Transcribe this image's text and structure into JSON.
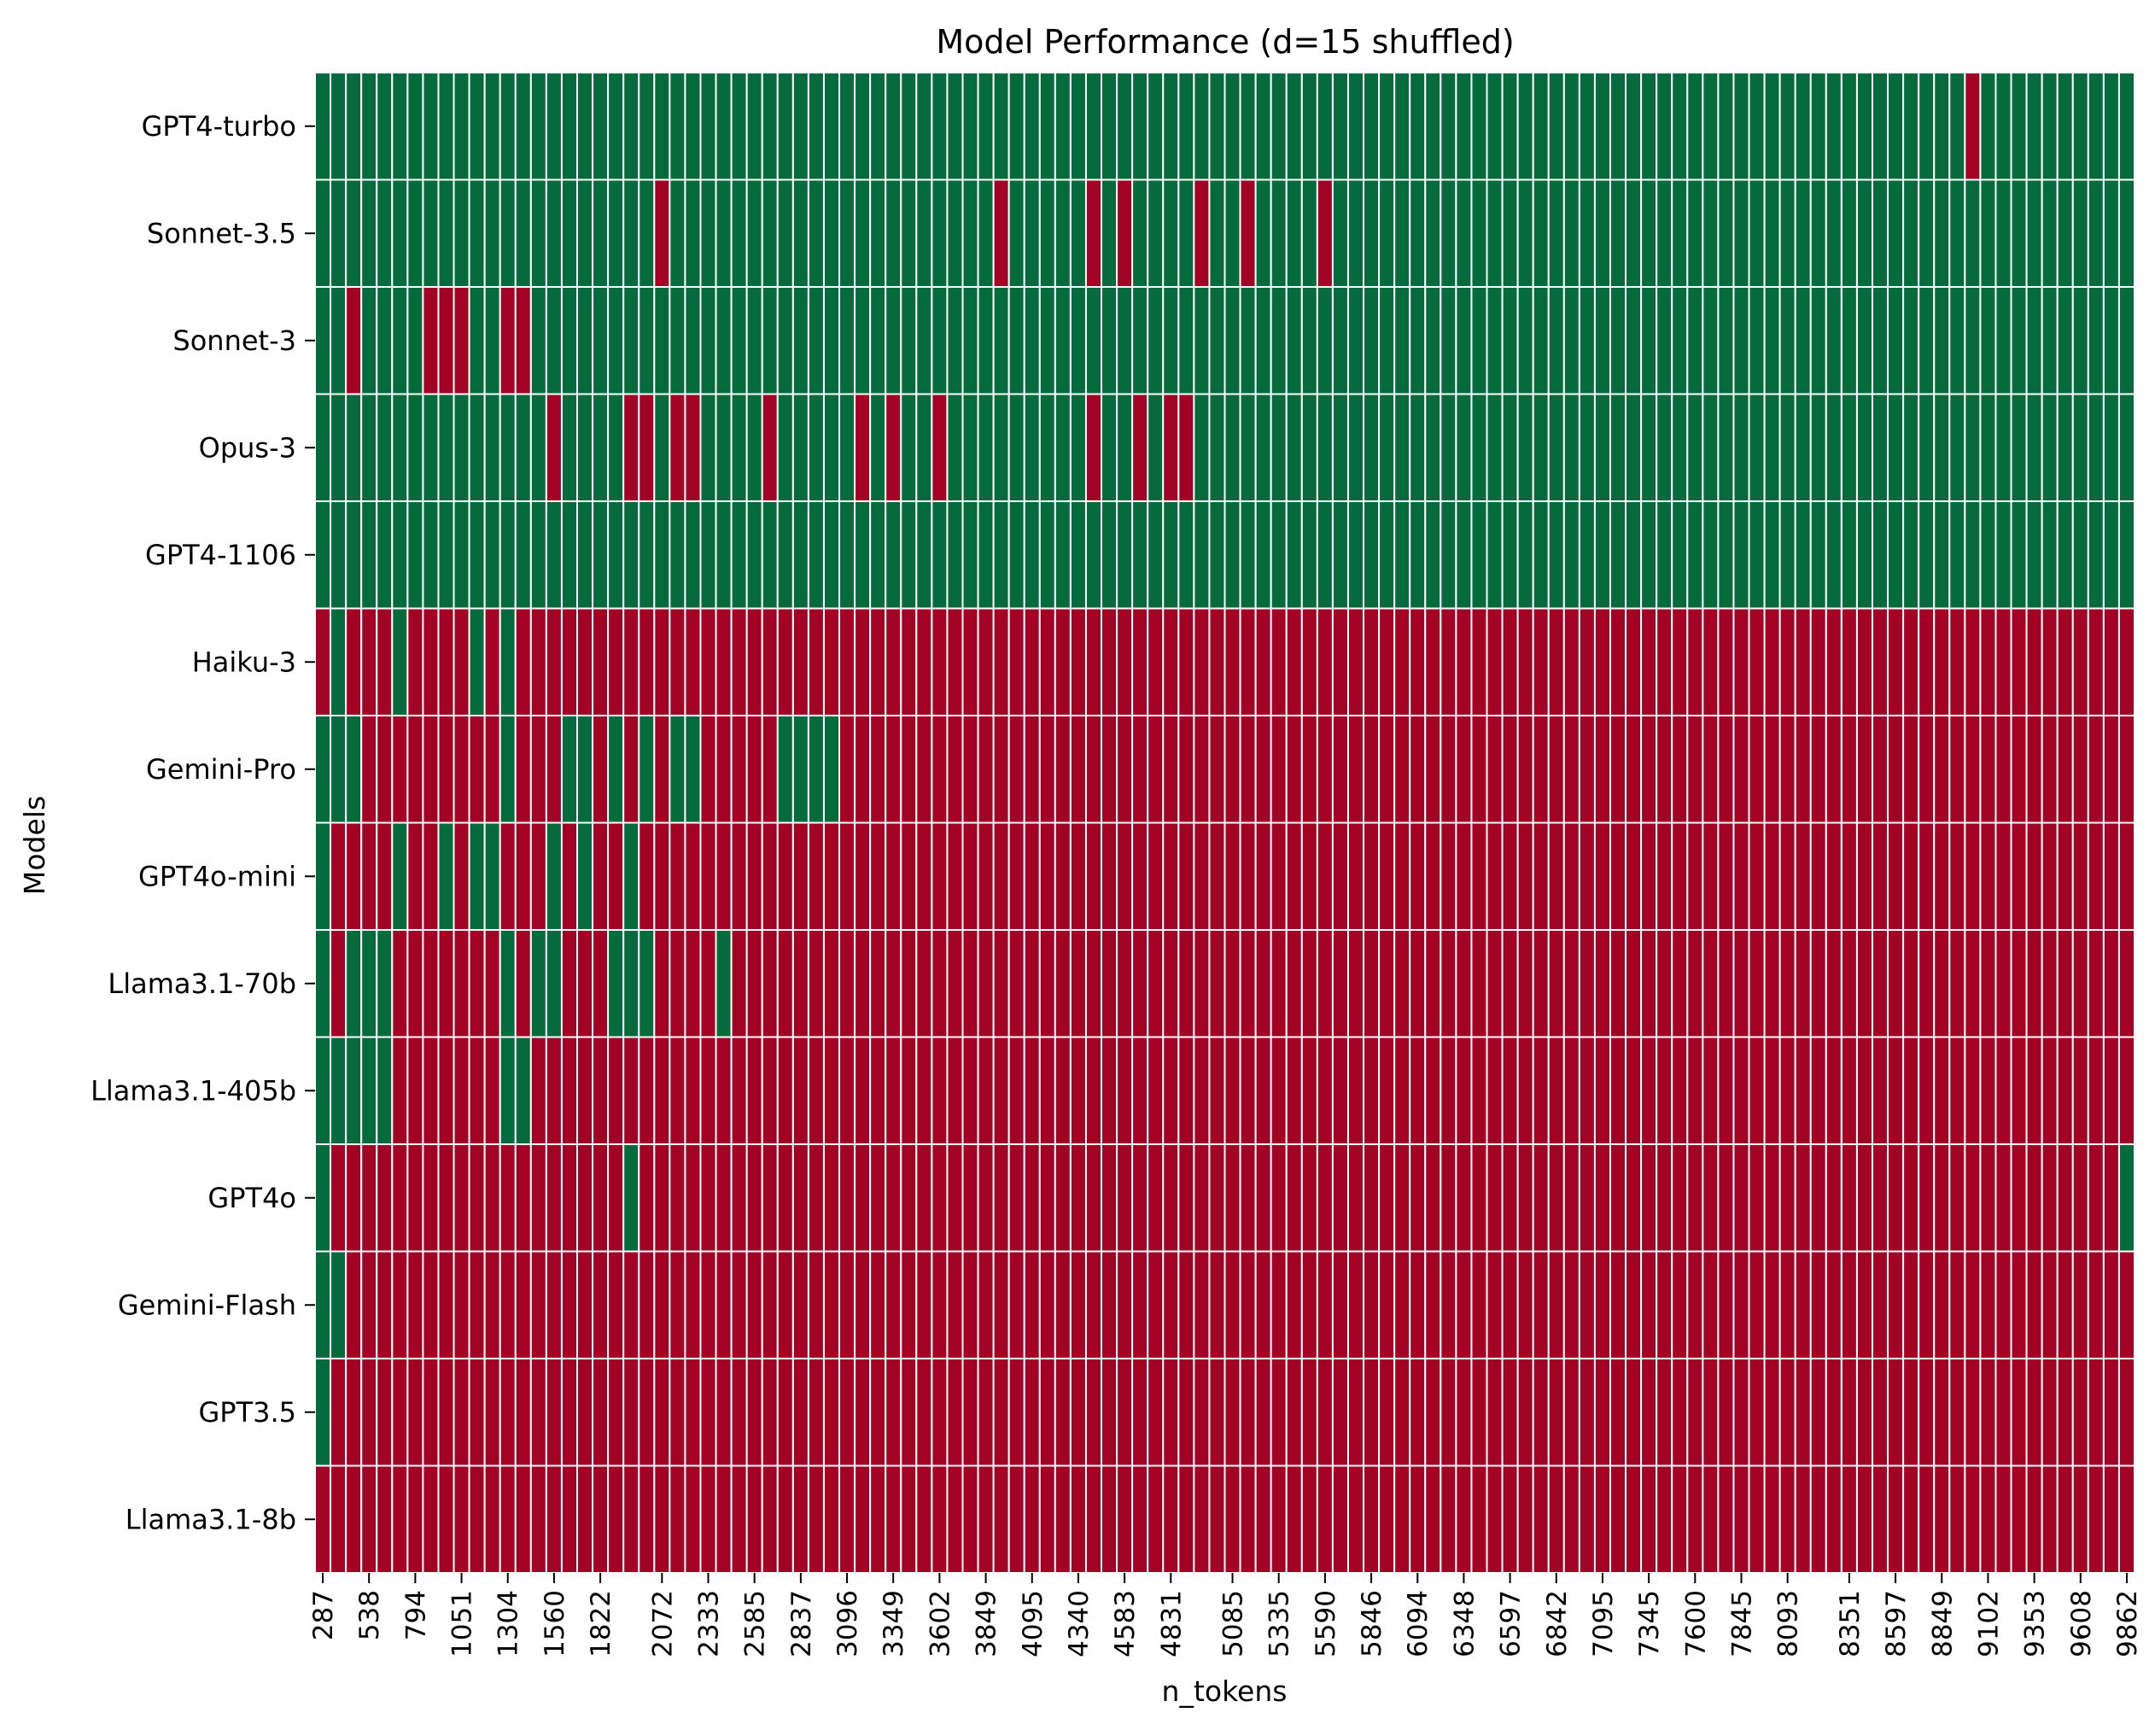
{
  "chart_data": {
    "type": "heatmap",
    "title": "Model Performance (d=15 shuffled)",
    "xlabel": "n_tokens",
    "ylabel": "Models",
    "colors": {
      "pass": "#066b3c",
      "fail": "#a20224",
      "separator": "#ffffff"
    },
    "value_legend": {
      "1": "pass",
      "0": "fail"
    },
    "x_tick_labels": [
      "287",
      "538",
      "794",
      "1051",
      "1304",
      "1560",
      "1822",
      "2072",
      "2333",
      "2585",
      "2837",
      "3096",
      "3349",
      "3602",
      "3849",
      "4095",
      "4340",
      "4583",
      "4831",
      "5085",
      "5335",
      "5590",
      "5846",
      "6094",
      "6348",
      "6597",
      "6842",
      "7095",
      "7345",
      "7600",
      "7845",
      "8093",
      "8351",
      "8597",
      "8849",
      "9102",
      "9353",
      "9608",
      "9862"
    ],
    "n_columns": 118,
    "models": [
      "GPT4-turbo",
      "Sonnet-3.5",
      "Sonnet-3",
      "Opus-3",
      "GPT4-1106",
      "Haiku-3",
      "Gemini-Pro",
      "GPT4o-mini",
      "Llama3.1-70b",
      "Llama3.1-405b",
      "GPT4o",
      "Gemini-Flash",
      "GPT3.5",
      "Llama3.1-8b"
    ],
    "rows": [
      "1111111111111111111111111111111111111111111111111111111111111111111111111111111111111111111111111111111111101111111111",
      "1111111111111111111111011111111111111111111101111101011110110111101111111111111111111111111111111111111111111111111111",
      "1101111000110011111111111111111111111111111111111111111111111111111111111111111111111111111111111111111111111111111111",
      "1111111111111110111100100111101111101011011111111101101001111111111111111111111111111111111111111111111111111111111111",
      "1111111111111111111111111111111111111111111111111111111111111111111111111111111111111111111111111111111111111111111111",
      "0100010000101000000000000000000000000000000000000000000000000000000000000000000000000000000000000000000000000000000000",
      "1110000000001000110101011000001111000000000000000000000000000000000000000000000000000000000000000000000000000000000000",
      "1000010010110001010010000000000000000000000000000000000000000000000000000000000000000000000000000000000000000000000000",
      "1011100000001011000111000010000000000000000000000000000000000000000000000000000000000000000000000000000000000000000000",
      "1111100000001100000000000000000000000000000000000000000000000000000000000000000000000000000000000000000000000000000000",
      "1000000000000000000010000000000000000000000000000000000000000000000000000000000000000000000000000000000000000000000001",
      "1100000000000000000000000000000000000000000000000000000000000000000000000000000000000000000000000000000000000000000000",
      "1000000000000000000000000000000000000000000000000000000000000000000000000000000000000000000000000000000000000000000000",
      "0000000000000000000000000000000000000000000000000000000000000000000000000000000000000000000000000000000000000000000000"
    ]
  }
}
